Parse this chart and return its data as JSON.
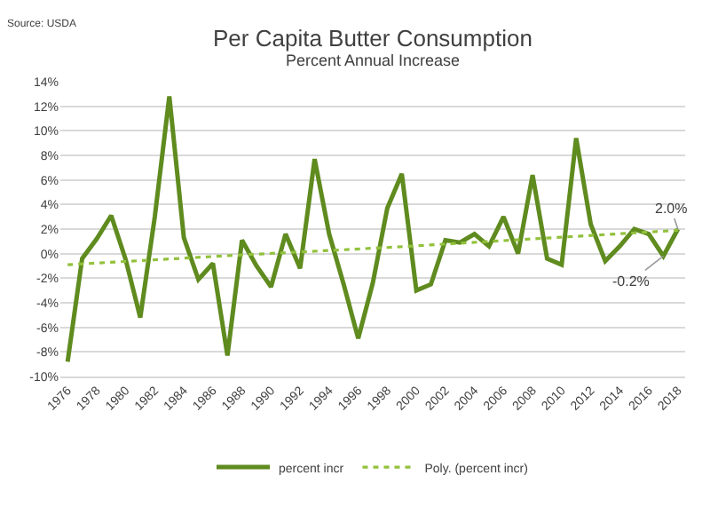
{
  "chart_data": {
    "type": "line",
    "title": "Per Capita Butter Consumption",
    "subtitle": "Percent Annual Increase",
    "annotations": [
      "Source: USDA",
      {
        "text": "2.0%",
        "x": 2018,
        "y": 2.0
      },
      {
        "text": "-0.2%",
        "x": 2017,
        "y": -0.2
      }
    ],
    "x": [
      1976,
      1977,
      1978,
      1979,
      1980,
      1981,
      1982,
      1983,
      1984,
      1985,
      1986,
      1987,
      1988,
      1989,
      1990,
      1991,
      1992,
      1993,
      1994,
      1995,
      1996,
      1997,
      1998,
      1999,
      2000,
      2001,
      2002,
      2003,
      2004,
      2005,
      2006,
      2007,
      2008,
      2009,
      2010,
      2011,
      2012,
      2013,
      2014,
      2015,
      2016,
      2017,
      2018
    ],
    "series": [
      {
        "name": "percent incr",
        "color": "#5f8b1f",
        "line_style": "solid",
        "values": [
          -8.8,
          -0.4,
          1.2,
          3.1,
          -0.5,
          -5.2,
          3.0,
          12.8,
          1.3,
          -2.1,
          -0.8,
          -8.3,
          1.1,
          -1.0,
          -2.7,
          1.6,
          -1.2,
          7.7,
          1.6,
          -2.5,
          -6.9,
          -2.4,
          3.7,
          6.5,
          -3.0,
          -2.5,
          1.1,
          0.9,
          1.6,
          0.6,
          3.0,
          0.0,
          6.4,
          -0.4,
          -0.9,
          9.4,
          2.4,
          -0.6,
          0.6,
          2.0,
          1.6,
          -0.2,
          2.0
        ]
      },
      {
        "name": "Poly. (percent incr)",
        "color": "#92c13c",
        "line_style": "dotted",
        "x": [
          1976,
          1988,
          1998,
          2008,
          2018
        ],
        "values": [
          -0.9,
          -0.1,
          0.5,
          1.2,
          1.9
        ]
      }
    ],
    "xlim": [
      1975.5,
      2018.5
    ],
    "xticks": [
      1976,
      1978,
      1980,
      1982,
      1984,
      1986,
      1988,
      1990,
      1992,
      1994,
      1996,
      1998,
      2000,
      2002,
      2004,
      2006,
      2008,
      2010,
      2012,
      2014,
      2016,
      2018
    ],
    "ylim": [
      -10,
      14
    ],
    "yticks": [
      {
        "value": -10,
        "label": "-10%"
      },
      {
        "value": -8,
        "label": "-8%"
      },
      {
        "value": -6,
        "label": "-6%"
      },
      {
        "value": -4,
        "label": "-4%"
      },
      {
        "value": -2,
        "label": "-2%"
      },
      {
        "value": 0,
        "label": "0%"
      },
      {
        "value": 2,
        "label": "2%"
      },
      {
        "value": 4,
        "label": "4%"
      },
      {
        "value": 6,
        "label": "6%"
      },
      {
        "value": 8,
        "label": "8%"
      },
      {
        "value": 10,
        "label": "10%"
      },
      {
        "value": 12,
        "label": "12%"
      },
      {
        "value": 14,
        "label": "14%"
      }
    ],
    "grid": "y",
    "legend": "bottom",
    "marker": "none"
  }
}
